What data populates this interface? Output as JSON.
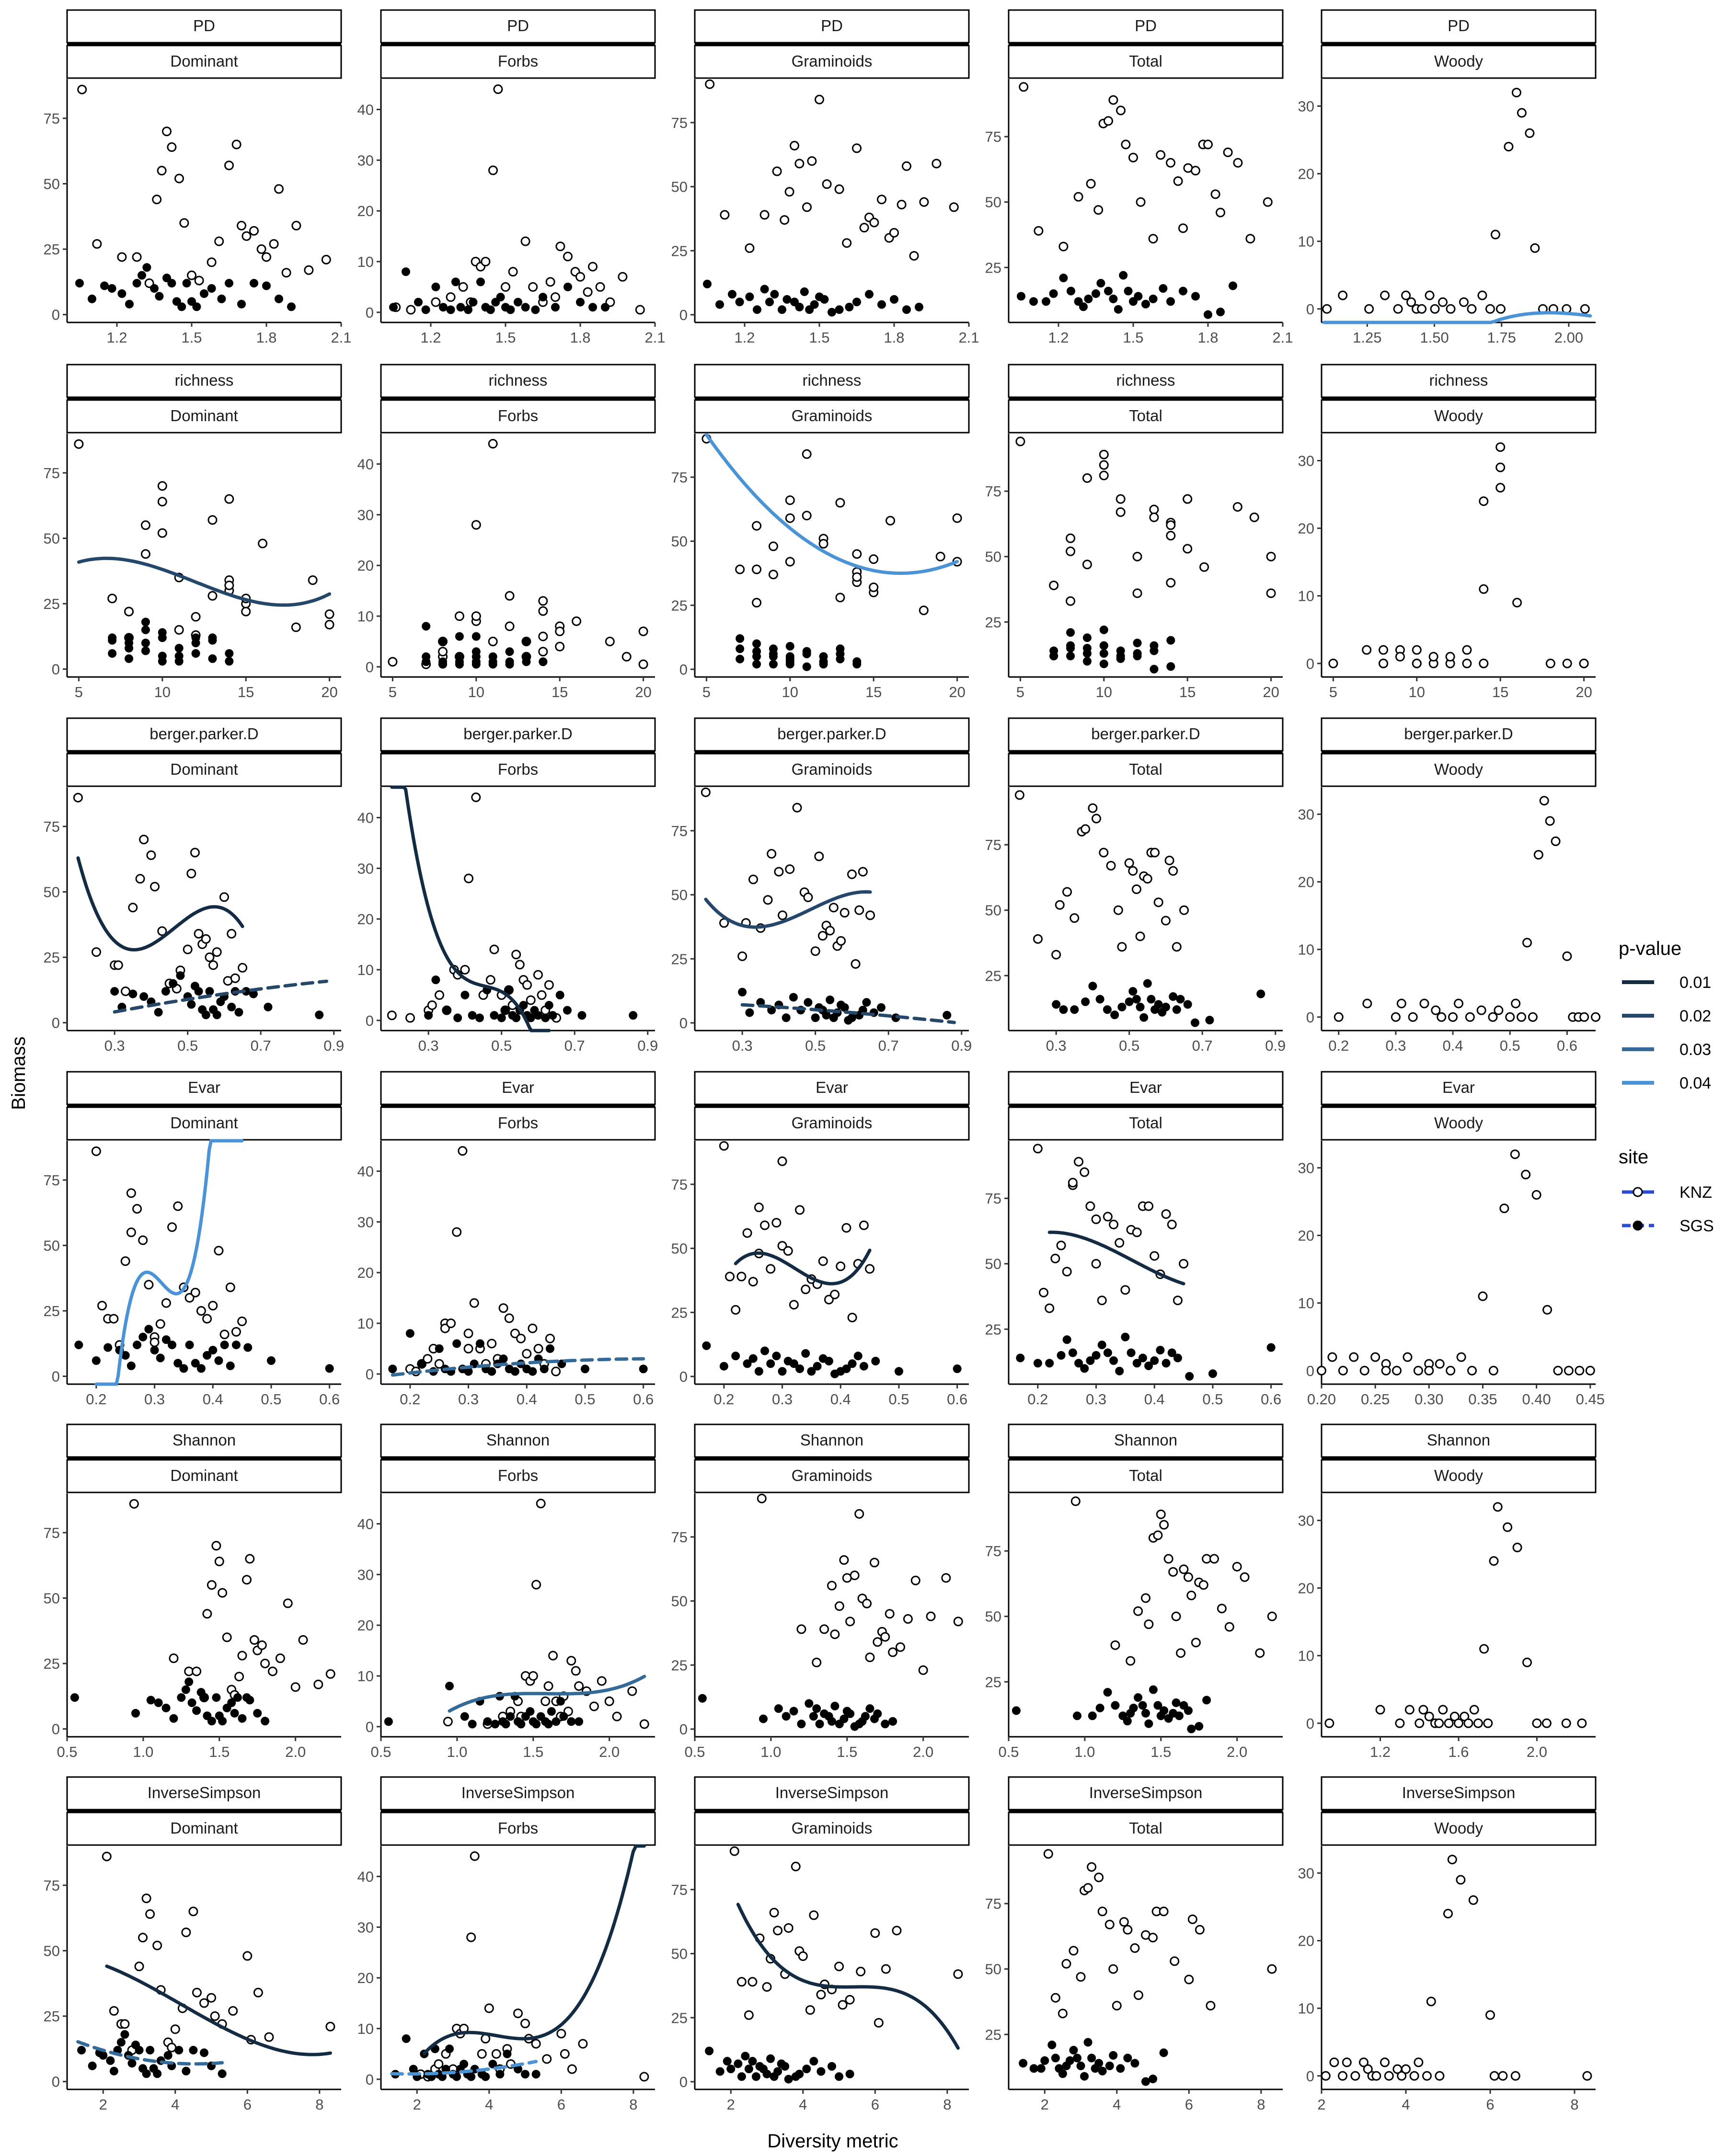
{
  "chart_data": {
    "type": "scatter",
    "xlabel": "Diversity metric",
    "ylabel": "Biomass",
    "row_strips": [
      "PD",
      "richness",
      "berger.parker.D",
      "Evar",
      "Shannon",
      "InverseSimpson"
    ],
    "col_strips": [
      "Dominant",
      "Forbs",
      "Graminoids",
      "Total",
      "Woody"
    ],
    "legend": {
      "pvalue_title": "p-value",
      "pvalue_entries": [
        {
          "label": "0.01",
          "color": "#132b43"
        },
        {
          "label": "0.02",
          "color": "#24476a"
        },
        {
          "label": "0.03",
          "color": "#336a98"
        },
        {
          "label": "0.04",
          "color": "#4a93d6"
        }
      ],
      "site_title": "site",
      "site_entries": [
        {
          "label": "KNZ",
          "linestyle": "solid",
          "marker": "open-circle",
          "color": "#2b4bd6"
        },
        {
          "label": "SGS",
          "linestyle": "dashed",
          "marker": "filled-circle",
          "color": "#2b4bd6"
        }
      ]
    },
    "xaxes": [
      {
        "lim": [
          1.0,
          2.1
        ],
        "ticks": [
          1.2,
          1.5,
          1.8,
          2.1
        ],
        "tick_labels": [
          "1.2",
          "1.5",
          "1.8",
          "2.1"
        ]
      },
      {
        "lim": [
          4.3,
          20.7
        ],
        "ticks": [
          5,
          10,
          15,
          20
        ],
        "tick_labels": [
          "5",
          "10",
          "15",
          "20"
        ]
      },
      {
        "lim": [
          0.17,
          0.92
        ],
        "ticks": [
          0.3,
          0.5,
          0.7,
          0.9
        ],
        "tick_labels": [
          "0.3",
          "0.5",
          "0.7",
          "0.9"
        ]
      },
      {
        "lim": [
          0.15,
          0.62
        ],
        "ticks": [
          0.2,
          0.3,
          0.4,
          0.5,
          0.6
        ],
        "tick_labels": [
          "0.2",
          "0.3",
          "0.4",
          "0.5",
          "0.6"
        ]
      },
      {
        "lim": [
          0.5,
          2.3
        ],
        "ticks": [
          0.5,
          1.0,
          1.5,
          2.0
        ],
        "tick_labels": [
          "0.5",
          "1.0",
          "1.5",
          "2.0"
        ]
      },
      {
        "lim": [
          1.0,
          8.6
        ],
        "ticks": [
          2,
          4,
          6,
          8
        ],
        "tick_labels": [
          "2",
          "4",
          "6",
          "8"
        ]
      }
    ],
    "woody_xaxes": [
      {
        "lim": [
          1.08,
          2.1
        ],
        "ticks": [
          1.25,
          1.5,
          1.75,
          2.0
        ],
        "tick_labels": [
          "1.25",
          "1.50",
          "1.75",
          "2.00"
        ]
      },
      {
        "lim": [
          4.3,
          20.7
        ],
        "ticks": [
          5,
          10,
          15,
          20
        ],
        "tick_labels": [
          "5",
          "10",
          "15",
          "20"
        ]
      },
      {
        "lim": [
          0.17,
          0.65
        ],
        "ticks": [
          0.2,
          0.3,
          0.4,
          0.5,
          0.6
        ],
        "tick_labels": [
          "0.2",
          "0.3",
          "0.4",
          "0.5",
          "0.6"
        ]
      },
      {
        "lim": [
          0.2,
          0.455
        ],
        "ticks": [
          0.2,
          0.25,
          0.3,
          0.35,
          0.4,
          0.45
        ],
        "tick_labels": [
          "0.20",
          "0.25",
          "0.30",
          "0.35",
          "0.40",
          "0.45"
        ]
      },
      {
        "lim": [
          0.9,
          2.3
        ],
        "ticks": [
          1.2,
          1.6,
          2.0
        ],
        "tick_labels": [
          "1.2",
          "1.6",
          "2.0"
        ]
      },
      {
        "lim": [
          2.0,
          8.5
        ],
        "ticks": [
          2,
          4,
          6,
          8
        ],
        "tick_labels": [
          "2",
          "4",
          "6",
          "8"
        ]
      }
    ],
    "yaxes": {
      "Dominant": {
        "lim": [
          -3,
          90
        ],
        "ticks": [
          0,
          25,
          50,
          75
        ]
      },
      "Forbs": {
        "lim": [
          -2,
          46
        ],
        "ticks": [
          0,
          10,
          20,
          30,
          40
        ]
      },
      "Graminoids": {
        "lim": [
          -3,
          92
        ],
        "ticks": [
          0,
          25,
          50,
          75
        ]
      },
      "Total": {
        "lim": [
          4,
          97
        ],
        "ticks": [
          25,
          50,
          75
        ]
      },
      "Woody": {
        "lim": [
          -2,
          34
        ],
        "ticks": [
          0,
          10,
          20,
          30
        ]
      }
    },
    "knz_x": [
      [
        1.06,
        1.12,
        1.22,
        1.28,
        1.33,
        1.36,
        1.38,
        1.4,
        1.42,
        1.45,
        1.47,
        1.5,
        1.53,
        1.58,
        1.61,
        1.65,
        1.68,
        1.7,
        1.72,
        1.75,
        1.78,
        1.8,
        1.83,
        1.85,
        1.88,
        1.92,
        1.97,
        2.04
      ],
      [
        5,
        7,
        8,
        8,
        8,
        9,
        9,
        10,
        10,
        10,
        11,
        11,
        12,
        12,
        13,
        13,
        14,
        14,
        14,
        14,
        15,
        15,
        15,
        16,
        18,
        19,
        20,
        20
      ],
      [
        0.2,
        0.25,
        0.3,
        0.31,
        0.33,
        0.35,
        0.37,
        0.38,
        0.4,
        0.41,
        0.43,
        0.45,
        0.47,
        0.48,
        0.5,
        0.51,
        0.52,
        0.53,
        0.54,
        0.55,
        0.56,
        0.57,
        0.58,
        0.6,
        0.61,
        0.62,
        0.63,
        0.65
      ],
      [
        0.2,
        0.21,
        0.22,
        0.23,
        0.24,
        0.25,
        0.26,
        0.26,
        0.27,
        0.28,
        0.29,
        0.3,
        0.3,
        0.31,
        0.32,
        0.33,
        0.34,
        0.35,
        0.36,
        0.37,
        0.38,
        0.39,
        0.4,
        0.41,
        0.42,
        0.43,
        0.44,
        0.45
      ],
      [
        0.94,
        1.2,
        1.3,
        1.35,
        1.4,
        1.42,
        1.45,
        1.48,
        1.5,
        1.52,
        1.55,
        1.58,
        1.6,
        1.63,
        1.65,
        1.68,
        1.7,
        1.73,
        1.75,
        1.78,
        1.8,
        1.85,
        1.9,
        1.95,
        2.0,
        2.05,
        2.15,
        2.23
      ],
      [
        2.1,
        2.3,
        2.5,
        2.6,
        2.8,
        3.0,
        3.1,
        3.2,
        3.3,
        3.5,
        3.6,
        3.8,
        3.9,
        4.0,
        4.2,
        4.3,
        4.5,
        4.6,
        4.8,
        5.0,
        5.1,
        5.3,
        5.6,
        6.0,
        6.1,
        6.3,
        6.6,
        8.3
      ]
    ],
    "sgs_x": [
      [
        1.05,
        1.1,
        1.15,
        1.18,
        1.22,
        1.25,
        1.28,
        1.3,
        1.32,
        1.35,
        1.37,
        1.4,
        1.42,
        1.44,
        1.46,
        1.48,
        1.5,
        1.52,
        1.55,
        1.58,
        1.62,
        1.65,
        1.7,
        1.75,
        1.8,
        1.85,
        1.9
      ],
      [
        7,
        7,
        7,
        8,
        8,
        8,
        8,
        9,
        9,
        9,
        9,
        10,
        10,
        10,
        10,
        10,
        11,
        11,
        11,
        12,
        12,
        12,
        13,
        13,
        13,
        14,
        14
      ],
      [
        0.3,
        0.32,
        0.35,
        0.38,
        0.4,
        0.42,
        0.44,
        0.46,
        0.48,
        0.5,
        0.51,
        0.52,
        0.53,
        0.54,
        0.55,
        0.56,
        0.57,
        0.58,
        0.59,
        0.6,
        0.62,
        0.63,
        0.64,
        0.66,
        0.68,
        0.72,
        0.86
      ],
      [
        0.17,
        0.2,
        0.22,
        0.24,
        0.25,
        0.26,
        0.27,
        0.28,
        0.29,
        0.3,
        0.31,
        0.32,
        0.33,
        0.34,
        0.35,
        0.36,
        0.37,
        0.38,
        0.39,
        0.4,
        0.41,
        0.42,
        0.43,
        0.44,
        0.46,
        0.5,
        0.6
      ],
      [
        0.55,
        0.95,
        1.05,
        1.1,
        1.15,
        1.2,
        1.25,
        1.28,
        1.3,
        1.32,
        1.35,
        1.38,
        1.4,
        1.42,
        1.45,
        1.48,
        1.5,
        1.52,
        1.55,
        1.58,
        1.6,
        1.62,
        1.65,
        1.68,
        1.7,
        1.75,
        1.8
      ],
      [
        1.4,
        1.7,
        1.9,
        2.0,
        2.2,
        2.3,
        2.4,
        2.5,
        2.6,
        2.7,
        2.8,
        2.9,
        3.0,
        3.1,
        3.2,
        3.3,
        3.4,
        3.5,
        3.6,
        3.8,
        3.9,
        4.1,
        4.3,
        4.5,
        4.8,
        5.0,
        5.3
      ]
    ],
    "knz_y": {
      "Dominant": [
        86,
        27,
        22,
        22,
        12,
        44,
        55,
        70,
        64,
        52,
        35,
        15,
        13,
        20,
        28,
        57,
        65,
        34,
        30,
        32,
        25,
        22,
        27,
        48,
        16,
        34,
        17,
        21
      ],
      "Forbs": [
        1,
        0.5,
        2,
        3,
        5,
        2,
        10,
        9,
        10,
        28,
        44,
        5,
        8,
        14,
        5,
        2,
        6,
        3,
        13,
        11,
        8,
        7,
        4,
        9,
        5,
        2,
        7,
        0.5
      ],
      "Graminoids": [
        90,
        39,
        26,
        39,
        56,
        37,
        48,
        66,
        59,
        42,
        60,
        84,
        51,
        49,
        28,
        65,
        34,
        38,
        36,
        45,
        30,
        32,
        43,
        58,
        23,
        44,
        59,
        42
      ],
      "Total": [
        94,
        39,
        33,
        52,
        57,
        47,
        80,
        81,
        89,
        85,
        72,
        67,
        50,
        36,
        68,
        65,
        58,
        40,
        63,
        62,
        72,
        72,
        53,
        46,
        69,
        65,
        36,
        50
      ],
      "Woody": [
        0,
        2,
        0,
        2,
        0,
        2,
        1,
        0,
        0,
        2,
        0,
        1,
        0,
        1,
        0,
        2,
        0,
        11,
        0,
        24,
        32,
        29,
        26,
        9,
        0,
        0,
        0,
        0
      ]
    },
    "sgs_y": {
      "Dominant": [
        12,
        6,
        11,
        10,
        8,
        4,
        12,
        15,
        18,
        10,
        7,
        14,
        12,
        5,
        3,
        12,
        5,
        3,
        8,
        10,
        6,
        12,
        4,
        12,
        11,
        6,
        3
      ],
      "Forbs": [
        1,
        8,
        2,
        0.5,
        5,
        1,
        0.5,
        6,
        1,
        0.5,
        2,
        6,
        1,
        0.5,
        2,
        3,
        1,
        0.5,
        2,
        1,
        0.5,
        3,
        1,
        5,
        2,
        1,
        1
      ],
      "Graminoids": [
        12,
        4,
        8,
        5,
        7,
        2,
        10,
        5,
        8,
        2,
        6,
        5,
        3,
        9,
        2,
        4,
        7,
        6,
        1,
        2,
        3,
        5,
        8,
        4,
        6,
        2,
        3
      ],
      "Total": [
        14,
        12,
        12,
        15,
        21,
        16,
        12,
        10,
        13,
        15,
        19,
        16,
        13,
        9,
        22,
        16,
        12,
        14,
        11,
        13,
        17,
        12,
        16,
        14,
        7,
        8,
        18
      ]
    },
    "fits": [
      {
        "row": 0,
        "col": 4,
        "color": "#4a93d6",
        "dashed": false,
        "xmin": 1.09,
        "xmax": 2.08,
        "coef": [
          -4.3,
          26.6,
          -58.7,
          39.5,
          -6.4
        ],
        "center": 1.6
      },
      {
        "row": 1,
        "col": 0,
        "color": "#24476a",
        "dashed": false,
        "xmin": 5,
        "xmax": 20,
        "coef": [
          32.0,
          -2.5,
          0.05,
          0.03
        ],
        "center": 12.5
      },
      {
        "row": 1,
        "col": 2,
        "color": "#4a93d6",
        "dashed": false,
        "xmin": 5,
        "xmax": 20,
        "coef": [
          38.0,
          -0.9,
          0.4
        ],
        "center": 15.5
      },
      {
        "row": 2,
        "col": 0,
        "color": "#132b43",
        "dashed": false,
        "xmin": 0.2,
        "xmax": 0.65,
        "coef": [
          31.5,
          95.0,
          400.0,
          -3100.0
        ],
        "center": 0.42
      },
      {
        "row": 2,
        "col": 0,
        "color": "#24476a",
        "dashed": true,
        "xmin": 0.3,
        "xmax": 0.88,
        "coef": [
          10.0,
          21.0,
          -10.0
        ],
        "center": 0.55
      },
      {
        "row": 2,
        "col": 1,
        "color": "#132b43",
        "dashed": false,
        "xmin": 0.2,
        "xmax": 0.63,
        "coef": [
          7.5,
          -30.0,
          360.0,
          -3400.0
        ],
        "center": 0.42
      },
      {
        "row": 2,
        "col": 2,
        "color": "#24476a",
        "dashed": false,
        "xmin": 0.2,
        "xmax": 0.65,
        "coef": [
          40.0,
          55.0,
          200.0,
          -1000.0
        ],
        "center": 0.42
      },
      {
        "row": 2,
        "col": 2,
        "color": "#24476a",
        "dashed": true,
        "xmin": 0.3,
        "xmax": 0.88,
        "coef": [
          4.0,
          -12.0,
          -6.0
        ],
        "center": 0.6
      },
      {
        "row": 3,
        "col": 0,
        "color": "#4a93d6",
        "dashed": false,
        "xmin": 0.2,
        "xmax": 0.45,
        "coef": [
          32.0,
          -120.0,
          7000.0,
          130000.0
        ],
        "center": 0.33
      },
      {
        "row": 3,
        "col": 1,
        "color": "#336a98",
        "dashed": true,
        "xmin": 0.17,
        "xmax": 0.6,
        "coef": [
          2.2,
          7.0,
          -15.0
        ],
        "center": 0.4
      },
      {
        "row": 3,
        "col": 2,
        "color": "#132b43",
        "dashed": false,
        "xmin": 0.22,
        "xmax": 0.45,
        "coef": [
          41.0,
          -140.0,
          300.0,
          12000.0
        ],
        "center": 0.33
      },
      {
        "row": 3,
        "col": 3,
        "color": "#132b43",
        "dashed": false,
        "xmin": 0.22,
        "xmax": 0.45,
        "coef": [
          55.0,
          -110.0,
          -200.0,
          2000.0
        ],
        "center": 0.33
      },
      {
        "row": 4,
        "col": 1,
        "color": "#336a98",
        "dashed": false,
        "xmin": 0.95,
        "xmax": 2.23,
        "coef": [
          6.5,
          -0.4,
          0.4,
          14.0
        ],
        "center": 1.6
      },
      {
        "row": 5,
        "col": 0,
        "color": "#132b43",
        "dashed": false,
        "xmin": 2.1,
        "xmax": 8.3,
        "coef": [
          23.0,
          -7.5,
          0.5,
          0.2
        ],
        "center": 5.0
      },
      {
        "row": 5,
        "col": 0,
        "color": "#336a98",
        "dashed": true,
        "xmin": 1.3,
        "xmax": 5.3,
        "coef": [
          8.0,
          -2.0,
          0.8
        ],
        "center": 3.3
      },
      {
        "row": 5,
        "col": 1,
        "color": "#132b43",
        "dashed": false,
        "xmin": 2.2,
        "xmax": 8.3,
        "coef": [
          8.0,
          0.2,
          1.8,
          0.75
        ],
        "center": 5.0
      },
      {
        "row": 5,
        "col": 1,
        "color": "#4a93d6",
        "dashed": true,
        "xmin": 1.3,
        "xmax": 5.3,
        "coef": [
          1.5,
          0.6,
          0.2
        ],
        "center": 3.3
      },
      {
        "row": 5,
        "col": 2,
        "color": "#132b43",
        "dashed": false,
        "xmin": 2.2,
        "xmax": 8.3,
        "coef": [
          37.0,
          -0.3,
          1.2,
          -1.0
        ],
        "center": 5.0
      }
    ]
  }
}
